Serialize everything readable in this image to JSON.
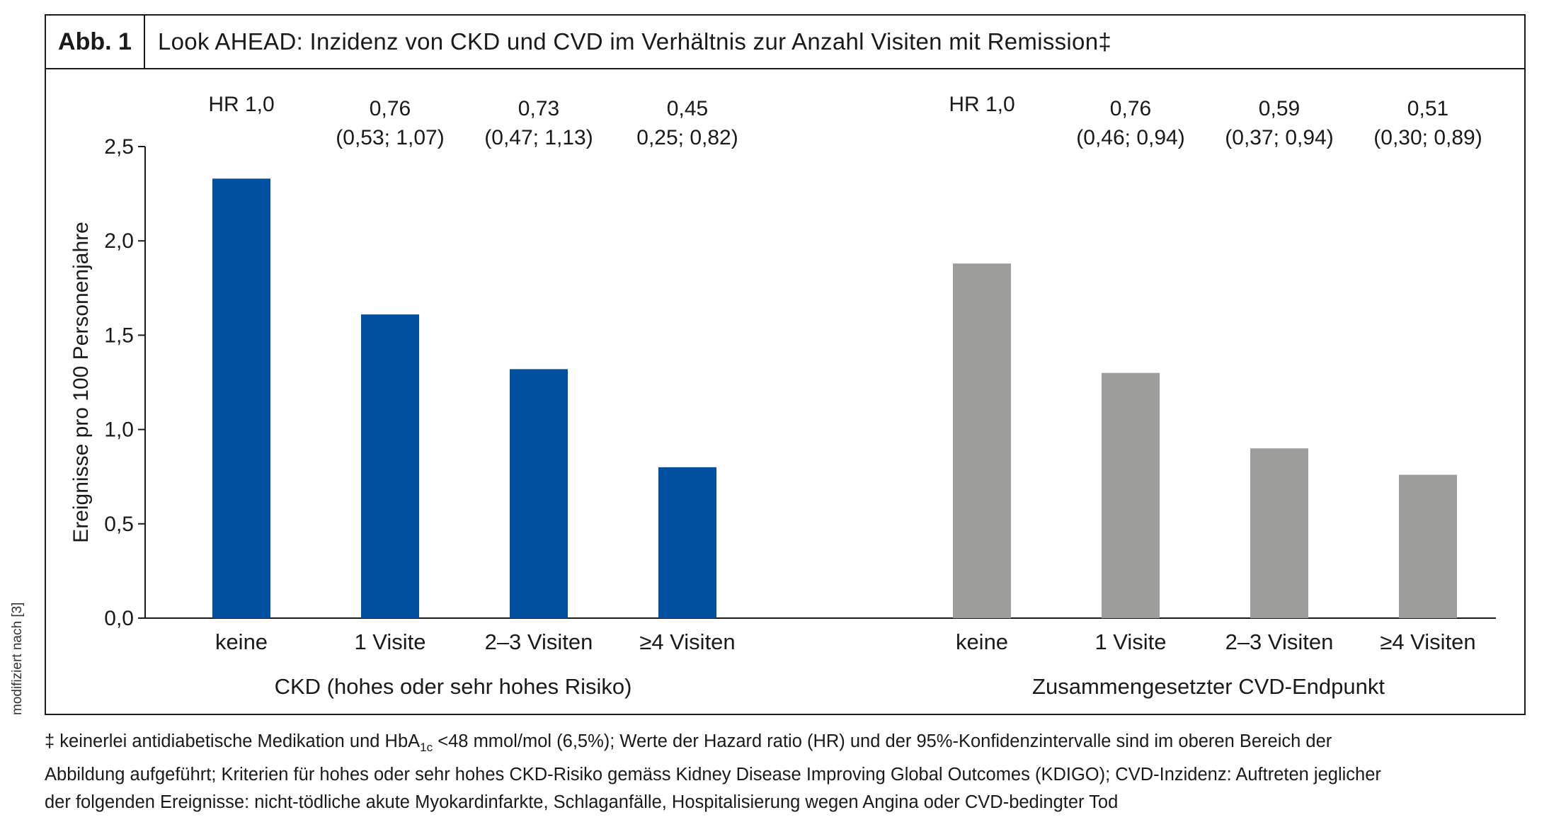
{
  "figure": {
    "label": "Abb. 1",
    "title": "Look AHEAD: Inzidenz von CKD und CVD im Verhältnis zur Anzahl Visiten mit Remission‡",
    "source_note": "modifiziert nach [3]"
  },
  "footnote": {
    "prefix": "‡ keinerlei antidiabetische Medikation und HbA",
    "subscript": "1c",
    "line1_rest": " <48 mmol/mol (6,5%); Werte der Hazard ratio (HR) und der 95%-Konfidenzintervalle sind im oberen Bereich der",
    "line2": "Abbildung aufgeführt; Kriterien für hohes oder sehr hohes CKD-Risiko gemäss Kidney Disease Improving Global Outcomes (KDIGO); CVD-Inzidenz: Auftreten jeglicher",
    "line3": "der folgenden Ereignisse: nicht-tödliche akute Myokardinfarkte, Schlaganfälle, Hospitalisierung wegen Angina oder CVD-bedingter Tod"
  },
  "chart_data": {
    "type": "bar",
    "ylabel": "Ereignisse pro 100 Personenjahre",
    "ylim": [
      0,
      2.5
    ],
    "yticks": [
      0.0,
      0.5,
      1.0,
      1.5,
      2.0,
      2.5
    ],
    "ytick_labels": [
      "0,0",
      "0,5",
      "1,0",
      "1,5",
      "2,0",
      "2,5"
    ],
    "grid": false,
    "groups": [
      {
        "name": "CKD (hohes oder sehr hohes Risiko)",
        "color": "#0050a0",
        "categories": [
          "keine",
          "1 Visite",
          "2–3 Visiten",
          "≥4 Visiten"
        ],
        "values": [
          2.33,
          1.61,
          1.32,
          0.8
        ],
        "hr_labels": [
          [
            "HR 1,0"
          ],
          [
            "0,76",
            "(0,53; 1,07)"
          ],
          [
            "0,73",
            "(0,47; 1,13)"
          ],
          [
            "0,45",
            "0,25; 0,82)"
          ]
        ]
      },
      {
        "name": "Zusammengesetzter CVD-Endpunkt",
        "color": "#9d9d9c",
        "categories": [
          "keine",
          "1 Visite",
          "2–3 Visiten",
          "≥4 Visiten"
        ],
        "values": [
          1.88,
          1.3,
          0.9,
          0.76
        ],
        "hr_labels": [
          [
            "HR 1,0"
          ],
          [
            "0,76",
            "(0,46; 0,94)"
          ],
          [
            "0,59",
            "(0,37; 0,94)"
          ],
          [
            "0,51",
            "(0,30; 0,89)"
          ]
        ]
      }
    ]
  }
}
